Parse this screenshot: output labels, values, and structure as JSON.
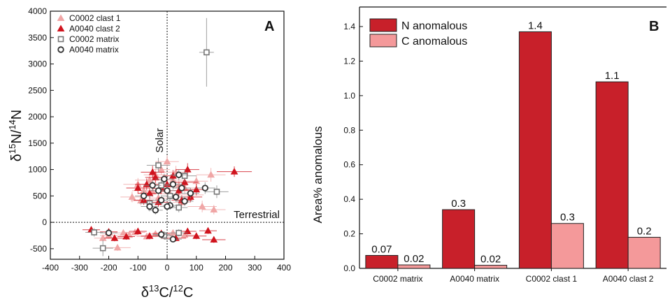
{
  "chart_data": [
    {
      "type": "scatter",
      "panel_label": "A",
      "xlabel": {
        "delta": "δ",
        "sup": "13",
        "mid": "C/",
        "sup2": "12",
        "end": "C"
      },
      "ylabel": {
        "delta": "δ",
        "sup": "15",
        "mid": "N/",
        "sup2": "14",
        "end": "N"
      },
      "xlim": [
        -400,
        400
      ],
      "ylim": [
        -700,
        4000
      ],
      "xticks": [
        -400,
        -300,
        -200,
        -100,
        0,
        100,
        200,
        300,
        400
      ],
      "yticks": [
        -500,
        0,
        500,
        1000,
        1500,
        2000,
        2500,
        3000,
        3500,
        4000
      ],
      "grid": false,
      "legend_position": "top-left",
      "reference_lines": [
        {
          "axis": "x",
          "value": 0,
          "label": "Solar",
          "style": "dotted"
        },
        {
          "axis": "y",
          "value": 0,
          "label": "Terrestrial",
          "style": "dotted"
        }
      ],
      "series": [
        {
          "name": "C0002 clast 1",
          "marker": "triangle",
          "color": "#f0a6a6",
          "fill": true,
          "points": [
            [
              -80,
              600,
              40,
              120
            ],
            [
              -60,
              800,
              50,
              100
            ],
            [
              -40,
              900,
              40,
              110
            ],
            [
              -20,
              1000,
              30,
              100
            ],
            [
              0,
              1150,
              40,
              120
            ],
            [
              20,
              800,
              35,
              100
            ],
            [
              40,
              700,
              30,
              90
            ],
            [
              60,
              650,
              40,
              110
            ],
            [
              80,
              520,
              45,
              120
            ],
            [
              100,
              780,
              40,
              110
            ],
            [
              150,
              900,
              50,
              130
            ],
            [
              -120,
              480,
              40,
              100
            ],
            [
              -100,
              720,
              50,
              120
            ],
            [
              -90,
              410,
              35,
              90
            ],
            [
              -50,
              580,
              40,
              100
            ],
            [
              -30,
              460,
              30,
              90
            ],
            [
              10,
              540,
              35,
              100
            ],
            [
              30,
              950,
              40,
              120
            ],
            [
              50,
              380,
              30,
              90
            ],
            [
              120,
              300,
              50,
              110
            ],
            [
              160,
              240,
              40,
              90
            ],
            [
              -170,
              -480,
              45,
              60
            ],
            [
              -150,
              -200,
              30,
              60
            ],
            [
              -130,
              -240,
              40,
              60
            ],
            [
              -110,
              -190,
              35,
              60
            ],
            [
              -70,
              -270,
              35,
              60
            ],
            [
              -40,
              -220,
              30,
              60
            ],
            [
              -10,
              -260,
              30,
              60
            ],
            [
              20,
              -200,
              30,
              60
            ],
            [
              60,
              -240,
              35,
              60
            ],
            [
              -200,
              -250,
              30,
              60
            ],
            [
              -220,
              -300,
              30,
              60
            ]
          ]
        },
        {
          "name": "A0040 clast 2",
          "marker": "triangle",
          "color": "#d0141e",
          "fill": true,
          "points": [
            [
              230,
              960,
              60,
              100
            ],
            [
              -70,
              720,
              40,
              110
            ],
            [
              -60,
              550,
              40,
              100
            ],
            [
              -40,
              850,
              35,
              110
            ],
            [
              -20,
              640,
              30,
              100
            ],
            [
              0,
              720,
              30,
              90
            ],
            [
              20,
              880,
              35,
              110
            ],
            [
              40,
              600,
              40,
              100
            ],
            [
              60,
              760,
              45,
              110
            ],
            [
              80,
              480,
              40,
              100
            ],
            [
              -80,
              420,
              35,
              90
            ],
            [
              -30,
              380,
              35,
              90
            ],
            [
              50,
              420,
              35,
              90
            ],
            [
              100,
              620,
              40,
              110
            ],
            [
              -100,
              650,
              40,
              110
            ],
            [
              -50,
              950,
              40,
              120
            ],
            [
              70,
              1000,
              40,
              120
            ],
            [
              -260,
              -140,
              30,
              60
            ],
            [
              -200,
              -180,
              30,
              60
            ],
            [
              -180,
              -300,
              35,
              60
            ],
            [
              -100,
              -170,
              30,
              60
            ],
            [
              -60,
              -260,
              30,
              60
            ],
            [
              -20,
              -210,
              30,
              60
            ],
            [
              30,
              -300,
              35,
              60
            ],
            [
              70,
              -170,
              30,
              60
            ],
            [
              100,
              -260,
              35,
              60
            ],
            [
              140,
              -160,
              30,
              60
            ],
            [
              160,
              -330,
              40,
              60
            ],
            [
              -140,
              -270,
              30,
              60
            ]
          ]
        },
        {
          "name": "C0002 matrix",
          "marker": "square",
          "color": "#777777",
          "fill": false,
          "points": [
            [
              135,
              3220,
              25,
              650
            ],
            [
              -30,
              1080,
              40,
              140
            ],
            [
              60,
              880,
              40,
              120
            ],
            [
              170,
              580,
              40,
              120
            ],
            [
              -20,
              700,
              30,
              100
            ],
            [
              10,
              500,
              30,
              100
            ],
            [
              -60,
              360,
              35,
              100
            ],
            [
              40,
              280,
              30,
              90
            ],
            [
              -220,
              -490,
              35,
              150
            ],
            [
              -250,
              -190,
              30,
              80
            ],
            [
              -10,
              -250,
              30,
              80
            ],
            [
              40,
              -200,
              30,
              70
            ]
          ]
        },
        {
          "name": "A0040 matrix",
          "marker": "circle",
          "color": "#333333",
          "fill": false,
          "points": [
            [
              -50,
              700,
              30,
              100
            ],
            [
              -30,
              600,
              30,
              90
            ],
            [
              -20,
              420,
              30,
              90
            ],
            [
              -10,
              820,
              30,
              100
            ],
            [
              0,
              600,
              30,
              90
            ],
            [
              10,
              320,
              25,
              80
            ],
            [
              20,
              720,
              30,
              100
            ],
            [
              30,
              480,
              30,
              90
            ],
            [
              50,
              650,
              30,
              100
            ],
            [
              60,
              400,
              30,
              90
            ],
            [
              80,
              550,
              30,
              100
            ],
            [
              130,
              650,
              35,
              110
            ],
            [
              -80,
              500,
              30,
              100
            ],
            [
              -60,
              300,
              30,
              90
            ],
            [
              40,
              900,
              30,
              100
            ],
            [
              -40,
              230,
              25,
              80
            ],
            [
              0,
              300,
              25,
              80
            ],
            [
              -200,
              -200,
              30,
              60
            ],
            [
              -20,
              -230,
              30,
              60
            ],
            [
              20,
              -320,
              30,
              60
            ]
          ]
        }
      ]
    },
    {
      "type": "bar",
      "panel_label": "B",
      "ylabel": "Area% anomalous",
      "ylim": [
        0,
        1.5
      ],
      "yticks": [
        0.0,
        0.2,
        0.4,
        0.6,
        0.8,
        1.0,
        1.2,
        1.4
      ],
      "ytick_labels": [
        "0.0",
        "0.2",
        "0.4",
        "0.6",
        "0.8",
        "1.0",
        "1.2",
        "1.4"
      ],
      "categories": [
        "C0002 matrix",
        "A0040 matrix",
        "C0002 clast 1",
        "A0040 clast 2"
      ],
      "legend_position": "top-left",
      "series": [
        {
          "name": "N anomalous",
          "color": "#c8202a",
          "values": [
            0.075,
            0.34,
            1.37,
            1.08
          ],
          "labels": [
            "0.07",
            "0.3",
            "1.4",
            "1.1"
          ]
        },
        {
          "name": "C anomalous",
          "color": "#f4999a",
          "values": [
            0.02,
            0.018,
            0.26,
            0.18
          ],
          "labels": [
            "0.02",
            "0.02",
            "0.3",
            "0.2"
          ]
        }
      ]
    }
  ]
}
